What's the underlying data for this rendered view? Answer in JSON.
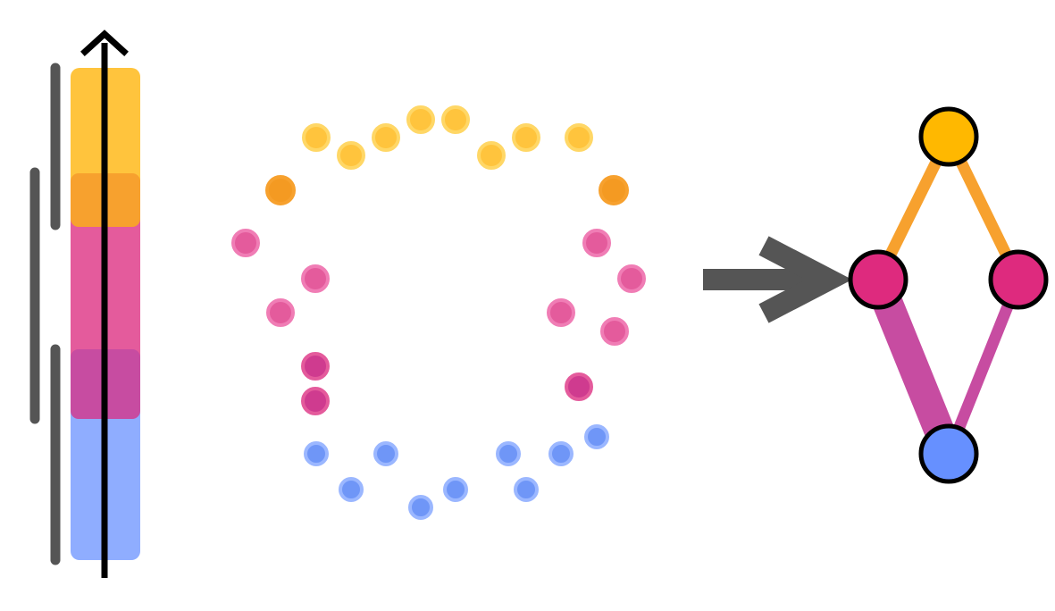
{
  "colors": {
    "yellow": "#FFC43D",
    "orange": "#F7A12E",
    "orange_dark": "#F49A22",
    "pink": "#E45B9C",
    "pink_node": "#DE2A7E",
    "magenta": "#C74CA1",
    "magenta_dark": "#CF3B8F",
    "blue": "#8FADFF",
    "blue_dot": "#6F96F7",
    "blue_node": "#6690FF",
    "node_top": "#FFB800",
    "gray": "#555555",
    "black": "#000000"
  },
  "diagram": {
    "left_panel": "stacked-interval-bar-with-upward-axis",
    "middle_panel": "ring-of-colored-points",
    "transform_arrow": "right-arrow",
    "right_panel": "diamond-graph-with-four-nodes"
  }
}
